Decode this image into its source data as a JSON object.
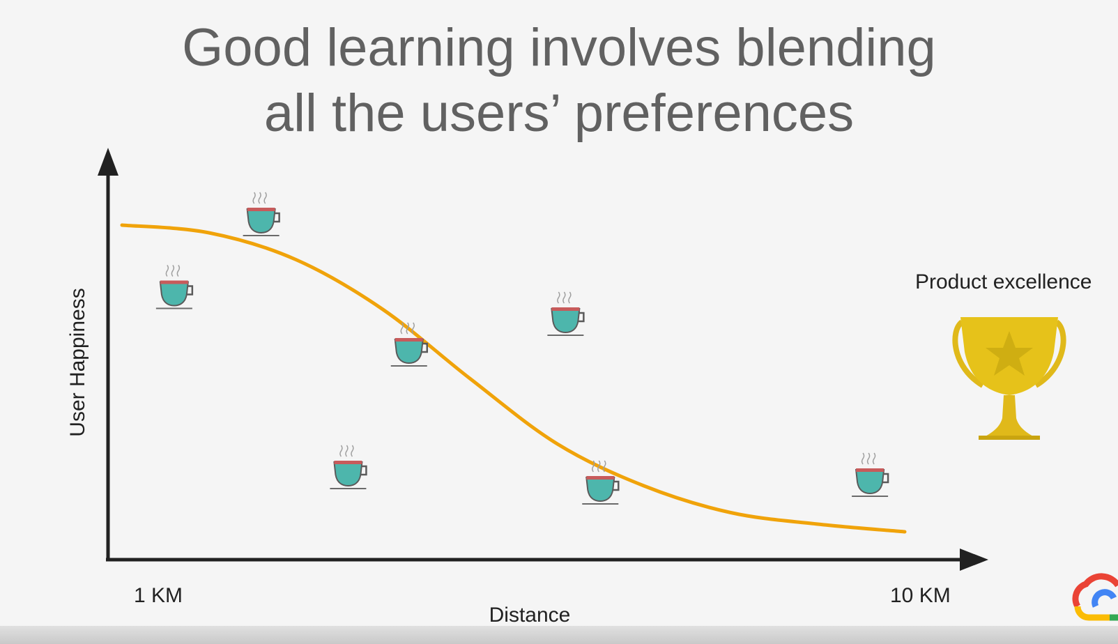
{
  "slide": {
    "title_line1": "Good learning involves blending",
    "title_line2": "all the users’ preferences",
    "award_label": "Product excellence"
  },
  "chart_data": {
    "type": "line",
    "title": "Good learning involves blending all the users’ preferences",
    "xlabel": "Distance",
    "ylabel": "User Happiness",
    "tick_labels": [
      "1 KM",
      "10 KM"
    ],
    "xlim": [
      1,
      10
    ],
    "ylim": [
      0,
      10
    ],
    "grid": false,
    "curve": {
      "x": [
        1,
        2,
        3,
        4,
        5,
        6,
        7,
        8,
        9,
        10
      ],
      "y": [
        8.4,
        8.2,
        7.5,
        6.2,
        4.4,
        2.7,
        1.6,
        0.9,
        0.6,
        0.4
      ]
    },
    "points": [
      {
        "x": 1.6,
        "y": 6.7
      },
      {
        "x": 2.6,
        "y": 8.6
      },
      {
        "x": 4.3,
        "y": 5.2
      },
      {
        "x": 6.1,
        "y": 6.0
      },
      {
        "x": 3.6,
        "y": 2.0
      },
      {
        "x": 6.5,
        "y": 1.6
      },
      {
        "x": 9.6,
        "y": 1.8
      }
    ],
    "colors": {
      "curve": "#f0a30a",
      "cup": "#4db6ac",
      "cup_rim": "#c75b5b",
      "axis": "#212121",
      "trophy": "#e6c21a"
    },
    "icons": {
      "points": "coffee-cup-icon",
      "award": "trophy-icon",
      "logo": "google-cloud-logo-icon"
    }
  }
}
